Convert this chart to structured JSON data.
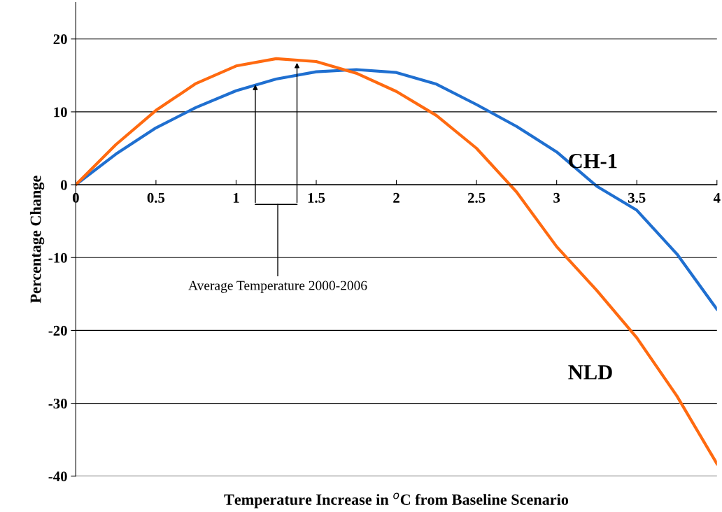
{
  "chart_data": {
    "type": "line",
    "xlabel": "Temperature Increase in $^{o}$C from Baseline Scenario",
    "ylabel": "Percentage Change",
    "x": [
      0,
      0.25,
      0.5,
      0.75,
      1,
      1.25,
      1.5,
      1.75,
      2,
      2.25,
      2.5,
      2.75,
      3,
      3.25,
      3.5,
      3.75,
      4
    ],
    "series": [
      {
        "name": "CH-1",
        "color": "#1f6fd0",
        "values": [
          0,
          4.2,
          7.8,
          10.6,
          12.9,
          14.5,
          15.5,
          15.8,
          15.4,
          13.8,
          11.0,
          8.0,
          4.5,
          -0.2,
          -3.5,
          -9.5,
          -17.1
        ]
      },
      {
        "name": "NLD",
        "color": "#ff6a10",
        "values": [
          0,
          5.5,
          10.2,
          13.9,
          16.3,
          17.3,
          16.9,
          15.3,
          12.8,
          9.5,
          5.0,
          -1.0,
          -8.5,
          -14.5,
          -21,
          -29,
          -38.3
        ]
      }
    ],
    "annotations": [
      "Average Temperature 2000-2006"
    ],
    "xlim": [
      0,
      4
    ],
    "ylim": [
      -40,
      25
    ],
    "xticks": [
      0,
      0.5,
      1,
      1.5,
      2,
      2.5,
      3,
      3.5,
      4
    ],
    "yticks": [
      -40,
      -30,
      -20,
      -10,
      0,
      10,
      20
    ],
    "grid": "y",
    "legend": false,
    "marker": "none",
    "line_style": "solid"
  }
}
